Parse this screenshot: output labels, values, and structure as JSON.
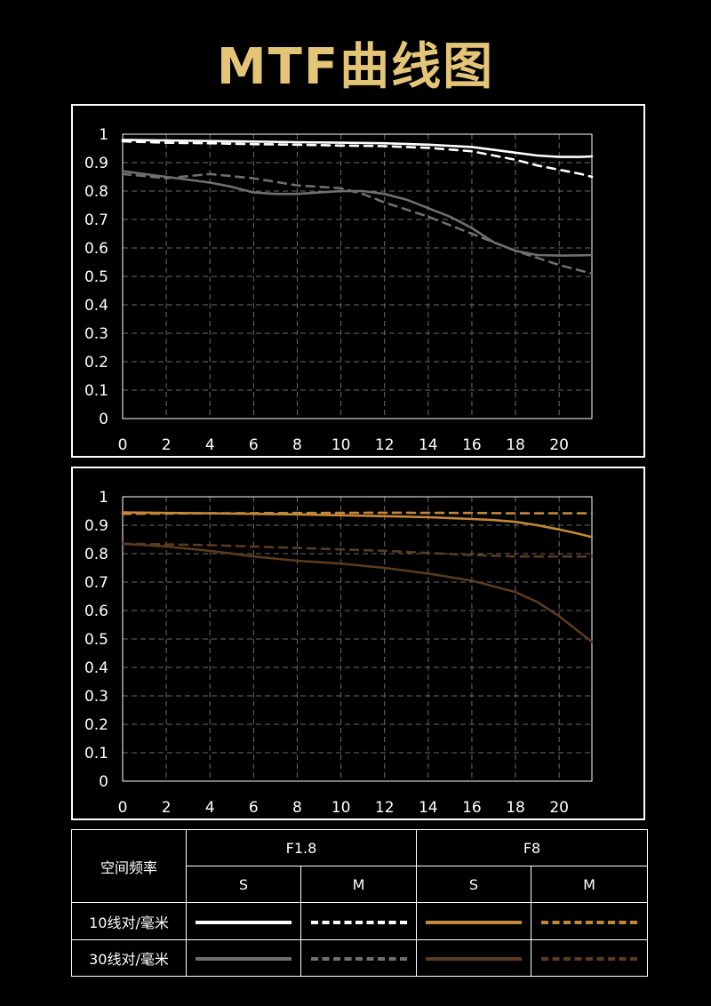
{
  "title": "MTF曲线图",
  "colors": {
    "title": "#e4c578",
    "f18_10": "#ffffff",
    "f18_30": "#6f6f6f",
    "f8_10": "#c48938",
    "f8_30": "#5b3b1e",
    "grid": "#6a6a6a"
  },
  "legend": {
    "header_label": "空间频率",
    "groups": [
      "F1.8",
      "F8"
    ],
    "subheaders": [
      "S",
      "M",
      "S",
      "M"
    ],
    "rows": [
      {
        "label": "10线对/毫米",
        "colors": [
          "#ffffff",
          "#ffffff",
          "#c48938",
          "#c48938"
        ]
      },
      {
        "label": "30线对/毫米",
        "colors": [
          "#6f6f6f",
          "#6f6f6f",
          "#5b3b1e",
          "#5b3b1e"
        ]
      }
    ]
  },
  "chart_data": [
    {
      "type": "line",
      "title": "",
      "xlabel": "",
      "ylabel": "",
      "xlim": [
        0,
        21.5
      ],
      "ylim": [
        0,
        1
      ],
      "xticks": [
        0,
        2,
        4,
        6,
        8,
        10,
        12,
        14,
        16,
        18,
        20
      ],
      "yticks": [
        0,
        0.1,
        0.2,
        0.3,
        0.4,
        0.5,
        0.6,
        0.7,
        0.8,
        0.9,
        1
      ],
      "ytick_labels": [
        "0",
        "0.1",
        "0.2",
        "0.3",
        "0.4",
        "0.5",
        "0.6",
        "0.7",
        "0.8",
        "0.9",
        "1"
      ],
      "grid": true,
      "series": [
        {
          "aperture": "F1.8",
          "frequency": "10线对/毫米",
          "direction": "S",
          "color": "#ffffff",
          "dashed": false,
          "x": [
            0,
            2,
            4,
            6,
            8,
            10,
            12,
            14,
            16,
            17,
            18,
            19,
            20,
            21,
            21.5
          ],
          "y": [
            0.98,
            0.978,
            0.976,
            0.974,
            0.972,
            0.97,
            0.968,
            0.963,
            0.955,
            0.945,
            0.935,
            0.925,
            0.92,
            0.92,
            0.922
          ]
        },
        {
          "aperture": "F1.8",
          "frequency": "10线对/毫米",
          "direction": "M",
          "color": "#ffffff",
          "dashed": true,
          "x": [
            0,
            2,
            4,
            6,
            8,
            10,
            12,
            14,
            16,
            17,
            18,
            19,
            20,
            21,
            21.5
          ],
          "y": [
            0.975,
            0.97,
            0.968,
            0.965,
            0.963,
            0.96,
            0.958,
            0.952,
            0.94,
            0.925,
            0.91,
            0.89,
            0.875,
            0.86,
            0.85
          ]
        },
        {
          "aperture": "F1.8",
          "frequency": "30线对/毫米",
          "direction": "S",
          "color": "#6f6f6f",
          "dashed": false,
          "x": [
            0,
            2,
            4,
            5,
            6,
            7,
            8,
            9,
            10,
            11,
            12,
            13,
            14,
            15,
            16,
            17,
            18,
            19,
            20,
            21,
            21.5
          ],
          "y": [
            0.87,
            0.85,
            0.83,
            0.815,
            0.795,
            0.79,
            0.79,
            0.795,
            0.8,
            0.8,
            0.79,
            0.77,
            0.74,
            0.71,
            0.67,
            0.62,
            0.59,
            0.575,
            0.573,
            0.574,
            0.575
          ]
        },
        {
          "aperture": "F1.8",
          "frequency": "30线对/毫米",
          "direction": "M",
          "color": "#6f6f6f",
          "dashed": true,
          "x": [
            0,
            2,
            4,
            6,
            8,
            10,
            11,
            12,
            14,
            16,
            18,
            20,
            21,
            21.5
          ],
          "y": [
            0.86,
            0.845,
            0.86,
            0.845,
            0.82,
            0.81,
            0.79,
            0.76,
            0.71,
            0.65,
            0.59,
            0.54,
            0.52,
            0.51
          ]
        }
      ]
    },
    {
      "type": "line",
      "title": "",
      "xlabel": "",
      "ylabel": "",
      "xlim": [
        0,
        21.5
      ],
      "ylim": [
        0,
        1
      ],
      "xticks": [
        0,
        2,
        4,
        6,
        8,
        10,
        12,
        14,
        16,
        18,
        20
      ],
      "yticks": [
        0,
        0.1,
        0.2,
        0.3,
        0.4,
        0.5,
        0.6,
        0.7,
        0.8,
        0.9,
        1
      ],
      "ytick_labels": [
        "0",
        "0.1",
        "0.2",
        "0.3",
        "0.4",
        "0.5",
        "0.6",
        "0.7",
        "0.8",
        "0.9",
        "1"
      ],
      "grid": true,
      "series": [
        {
          "aperture": "F8",
          "frequency": "10线对/毫米",
          "direction": "S",
          "color": "#c48938",
          "dashed": false,
          "x": [
            0,
            2,
            4,
            6,
            8,
            10,
            12,
            14,
            16,
            17,
            18,
            19,
            20,
            21,
            21.5
          ],
          "y": [
            0.945,
            0.943,
            0.942,
            0.94,
            0.938,
            0.935,
            0.932,
            0.928,
            0.922,
            0.918,
            0.912,
            0.9,
            0.885,
            0.868,
            0.858
          ]
        },
        {
          "aperture": "F8",
          "frequency": "10线对/毫米",
          "direction": "M",
          "color": "#c48938",
          "dashed": true,
          "x": [
            0,
            4,
            8,
            12,
            16,
            18,
            20,
            21.5
          ],
          "y": [
            0.94,
            0.942,
            0.943,
            0.944,
            0.943,
            0.942,
            0.942,
            0.942
          ]
        },
        {
          "aperture": "F8",
          "frequency": "30线对/毫米",
          "direction": "S",
          "color": "#5b3b1e",
          "dashed": false,
          "x": [
            0,
            2,
            4,
            6,
            8,
            10,
            12,
            14,
            16,
            17,
            18,
            19,
            20,
            21,
            21.5
          ],
          "y": [
            0.835,
            0.825,
            0.81,
            0.79,
            0.775,
            0.765,
            0.75,
            0.73,
            0.705,
            0.685,
            0.665,
            0.63,
            0.58,
            0.52,
            0.49
          ]
        },
        {
          "aperture": "F8",
          "frequency": "30线对/毫米",
          "direction": "M",
          "color": "#5b3b1e",
          "dashed": true,
          "x": [
            0,
            4,
            8,
            12,
            16,
            18,
            20,
            21.5
          ],
          "y": [
            0.835,
            0.83,
            0.82,
            0.81,
            0.795,
            0.79,
            0.79,
            0.79
          ]
        }
      ]
    }
  ]
}
